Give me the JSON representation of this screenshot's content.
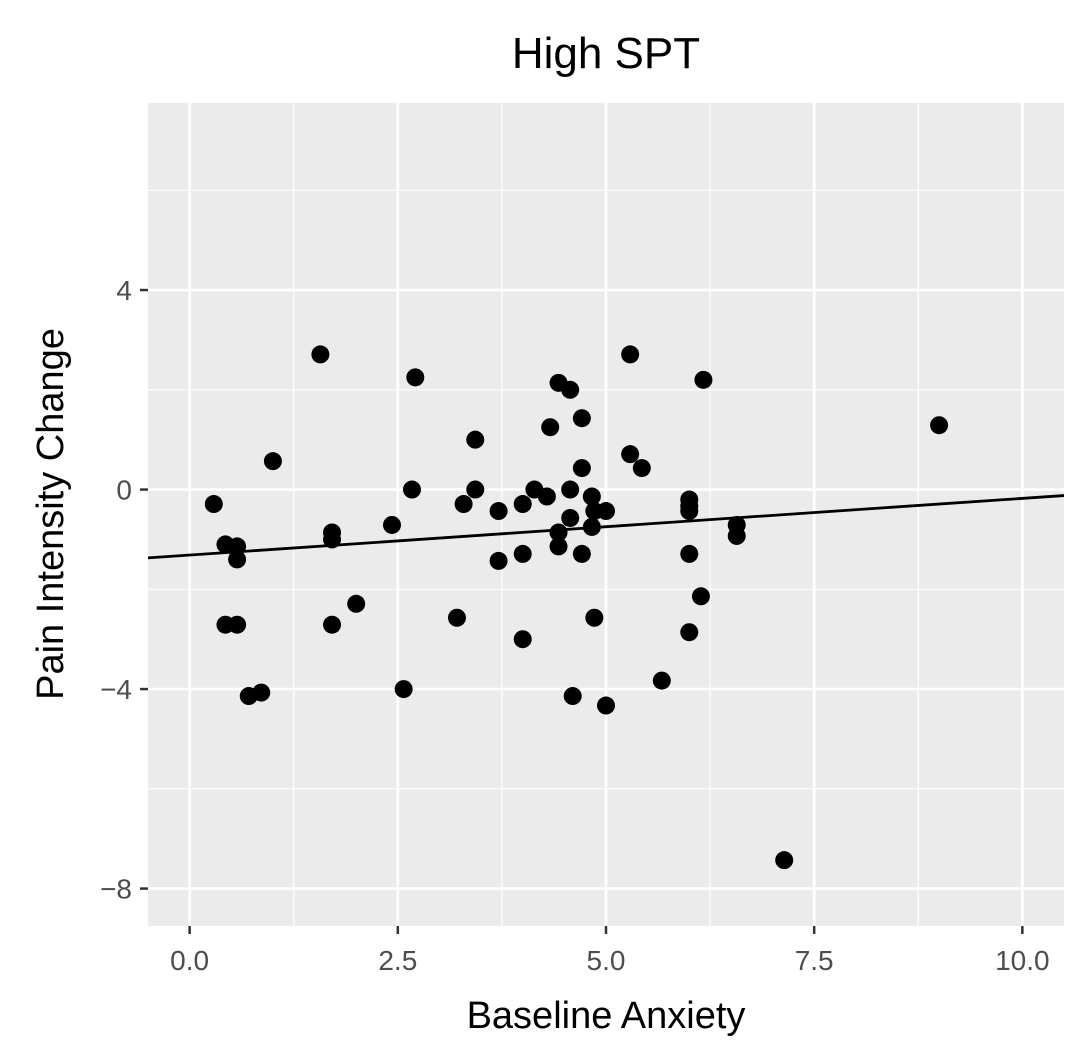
{
  "chart_data": {
    "type": "scatter",
    "title": "High SPT",
    "xlabel": "Baseline Anxiety",
    "ylabel": "Pain Intensity Change",
    "xlim": [
      -0.5,
      10.5
    ],
    "ylim": [
      -8.75,
      7.75
    ],
    "x_ticks": [
      0.0,
      2.5,
      5.0,
      7.5,
      10.0
    ],
    "x_tick_labels": [
      "0.0",
      "2.5",
      "5.0",
      "7.5",
      "10.0"
    ],
    "y_ticks": [
      -8,
      -4,
      0,
      4
    ],
    "y_tick_labels": [
      "−8",
      "−4",
      "0",
      "4"
    ],
    "grid": true,
    "colors": {
      "panel": "#ebebeb",
      "grid": "#ffffff",
      "point": "#000000",
      "line": "#000000",
      "tick": "#4d4d4d"
    },
    "points": [
      {
        "x": 0.29,
        "y": -0.29
      },
      {
        "x": 0.43,
        "y": -1.1
      },
      {
        "x": 0.57,
        "y": -1.14
      },
      {
        "x": 0.57,
        "y": -1.4
      },
      {
        "x": 0.43,
        "y": -2.71
      },
      {
        "x": 0.57,
        "y": -2.71
      },
      {
        "x": 0.71,
        "y": -4.14
      },
      {
        "x": 0.86,
        "y": -4.07
      },
      {
        "x": 1.0,
        "y": 0.57
      },
      {
        "x": 1.57,
        "y": 2.71
      },
      {
        "x": 1.71,
        "y": -0.86
      },
      {
        "x": 1.71,
        "y": -1.0
      },
      {
        "x": 1.71,
        "y": -2.71
      },
      {
        "x": 2.0,
        "y": -2.29
      },
      {
        "x": 2.43,
        "y": -0.71
      },
      {
        "x": 2.57,
        "y": -4.0
      },
      {
        "x": 2.67,
        "y": 0.0
      },
      {
        "x": 2.71,
        "y": 2.25
      },
      {
        "x": 3.21,
        "y": -2.57
      },
      {
        "x": 3.29,
        "y": -0.29
      },
      {
        "x": 3.43,
        "y": 0.0
      },
      {
        "x": 3.43,
        "y": 1.0
      },
      {
        "x": 3.71,
        "y": -0.43
      },
      {
        "x": 3.71,
        "y": -1.43
      },
      {
        "x": 4.0,
        "y": -0.29
      },
      {
        "x": 4.0,
        "y": -1.29
      },
      {
        "x": 4.0,
        "y": -3.0
      },
      {
        "x": 4.14,
        "y": 0.0
      },
      {
        "x": 4.29,
        "y": -0.14
      },
      {
        "x": 4.33,
        "y": 1.25
      },
      {
        "x": 4.43,
        "y": 2.14
      },
      {
        "x": 4.43,
        "y": -0.86
      },
      {
        "x": 4.43,
        "y": -1.14
      },
      {
        "x": 4.57,
        "y": 2.0
      },
      {
        "x": 4.57,
        "y": 0.0
      },
      {
        "x": 4.57,
        "y": -0.57
      },
      {
        "x": 4.6,
        "y": -4.14
      },
      {
        "x": 4.71,
        "y": 1.43
      },
      {
        "x": 4.71,
        "y": 0.43
      },
      {
        "x": 4.71,
        "y": -1.29
      },
      {
        "x": 4.83,
        "y": -0.14
      },
      {
        "x": 4.86,
        "y": -0.43
      },
      {
        "x": 4.83,
        "y": -0.75
      },
      {
        "x": 4.86,
        "y": -2.57
      },
      {
        "x": 5.0,
        "y": -0.43
      },
      {
        "x": 5.0,
        "y": -4.33
      },
      {
        "x": 5.29,
        "y": 2.71
      },
      {
        "x": 5.29,
        "y": 0.71
      },
      {
        "x": 5.43,
        "y": 0.43
      },
      {
        "x": 5.67,
        "y": -3.83
      },
      {
        "x": 6.0,
        "y": -0.2
      },
      {
        "x": 6.0,
        "y": -0.33
      },
      {
        "x": 6.0,
        "y": -0.43
      },
      {
        "x": 6.0,
        "y": -1.29
      },
      {
        "x": 6.0,
        "y": -2.86
      },
      {
        "x": 6.14,
        "y": -2.14
      },
      {
        "x": 6.17,
        "y": 2.2
      },
      {
        "x": 6.57,
        "y": -0.71
      },
      {
        "x": 6.57,
        "y": -0.93
      },
      {
        "x": 7.14,
        "y": -7.43
      },
      {
        "x": 9.0,
        "y": 1.29
      }
    ],
    "fit_line": {
      "x": [
        -0.5,
        10.5
      ],
      "y": [
        -1.37,
        -0.12
      ]
    }
  }
}
